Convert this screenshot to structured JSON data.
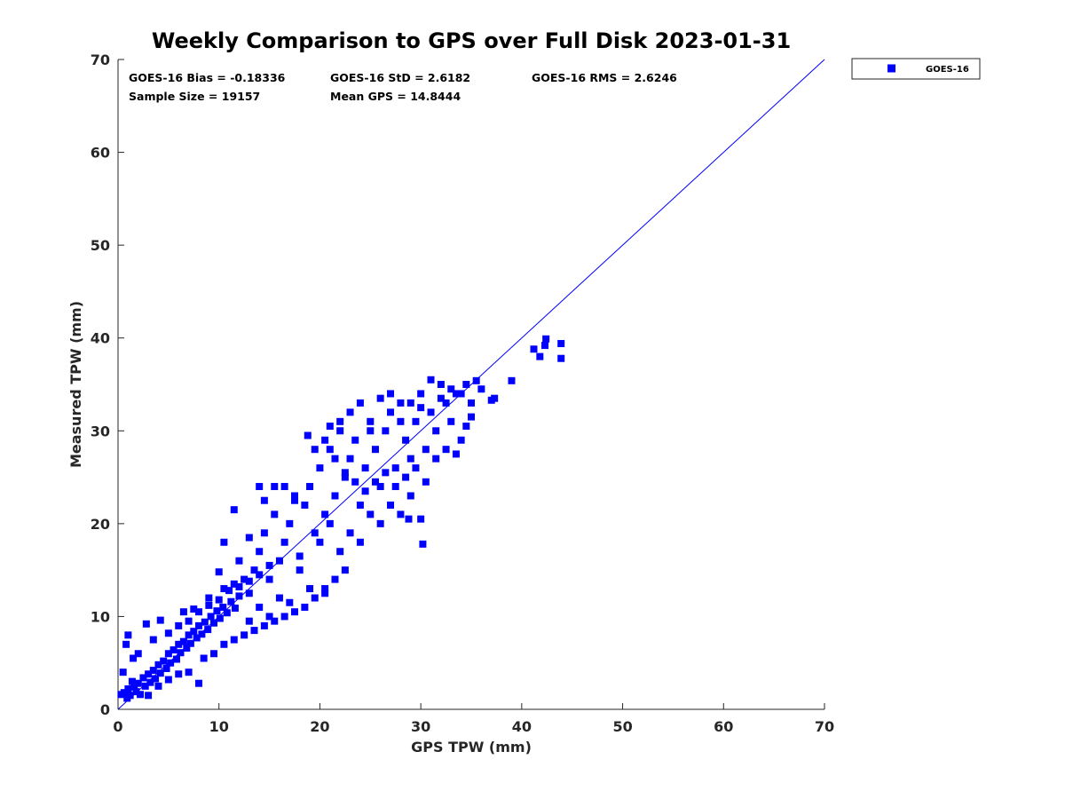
{
  "chart_data": {
    "type": "scatter",
    "title": "Weekly Comparison to GPS over Full Disk 2023-01-31",
    "xlabel": "GPS TPW (mm)",
    "ylabel": "Measured TPW (mm)",
    "xlim": [
      0,
      70
    ],
    "ylim": [
      0,
      70
    ],
    "x_ticks": [
      0,
      10,
      20,
      30,
      40,
      50,
      60,
      70
    ],
    "y_ticks": [
      0,
      10,
      20,
      30,
      40,
      50,
      60,
      70
    ],
    "grid": false,
    "legend_position": "outside-top-right",
    "colors": {
      "series": "#0000ff",
      "axes": "#262626"
    },
    "stats": [
      "GOES-16 Bias = -0.18336",
      "GOES-16 StD = 2.6182",
      "GOES-16 RMS = 2.6246",
      "Sample Size = 19157",
      "Mean GPS = 14.8444"
    ],
    "reference_line": {
      "x": [
        0,
        70
      ],
      "y": [
        0,
        70
      ]
    },
    "series": [
      {
        "name": "GOES-16",
        "marker": "square",
        "points": [
          [
            0.3,
            1.6
          ],
          [
            0.6,
            1.8
          ],
          [
            0.9,
            1.2
          ],
          [
            1.0,
            2.2
          ],
          [
            1.2,
            1.5
          ],
          [
            1.4,
            3.0
          ],
          [
            1.6,
            2.4
          ],
          [
            1.8,
            1.9
          ],
          [
            2.0,
            2.8
          ],
          [
            2.2,
            1.6
          ],
          [
            2.5,
            3.4
          ],
          [
            2.7,
            2.5
          ],
          [
            3.0,
            3.8
          ],
          [
            3.2,
            2.9
          ],
          [
            3.5,
            4.2
          ],
          [
            3.7,
            3.3
          ],
          [
            4.0,
            4.8
          ],
          [
            4.2,
            3.9
          ],
          [
            4.5,
            5.2
          ],
          [
            4.8,
            4.4
          ],
          [
            5.0,
            6.0
          ],
          [
            5.2,
            5.0
          ],
          [
            5.5,
            6.4
          ],
          [
            5.8,
            5.4
          ],
          [
            6.0,
            7.0
          ],
          [
            6.2,
            6.1
          ],
          [
            6.5,
            7.3
          ],
          [
            6.8,
            6.6
          ],
          [
            7.0,
            8.0
          ],
          [
            7.2,
            7.1
          ],
          [
            7.5,
            8.4
          ],
          [
            7.8,
            7.7
          ],
          [
            8.0,
            9.0
          ],
          [
            8.3,
            8.1
          ],
          [
            8.6,
            9.4
          ],
          [
            8.9,
            8.6
          ],
          [
            9.2,
            10.0
          ],
          [
            9.5,
            9.3
          ],
          [
            9.8,
            10.6
          ],
          [
            10.1,
            9.8
          ],
          [
            10.4,
            11.0
          ],
          [
            10.8,
            10.4
          ],
          [
            11.2,
            11.6
          ],
          [
            11.6,
            10.9
          ],
          [
            12.0,
            12.2
          ],
          [
            0.5,
            4.0
          ],
          [
            0.8,
            7.0
          ],
          [
            1.0,
            8.0
          ],
          [
            1.5,
            5.5
          ],
          [
            2.0,
            6.0
          ],
          [
            2.8,
            9.2
          ],
          [
            3.5,
            7.5
          ],
          [
            4.2,
            9.6
          ],
          [
            5.0,
            8.2
          ],
          [
            6.5,
            10.5
          ],
          [
            7.5,
            10.8
          ],
          [
            3.0,
            1.5
          ],
          [
            4.0,
            2.5
          ],
          [
            5.0,
            3.2
          ],
          [
            6.0,
            3.8
          ],
          [
            7.0,
            4.0
          ],
          [
            8.0,
            2.8
          ],
          [
            8.5,
            5.5
          ],
          [
            9.5,
            6.0
          ],
          [
            10.5,
            7.0
          ],
          [
            11.5,
            7.5
          ],
          [
            12.5,
            8.0
          ],
          [
            13.5,
            8.5
          ],
          [
            14.5,
            9.0
          ],
          [
            15.5,
            9.5
          ],
          [
            16.5,
            10.0
          ],
          [
            17.5,
            10.5
          ],
          [
            18.5,
            11.0
          ],
          [
            19.5,
            12.0
          ],
          [
            20.5,
            13.0
          ],
          [
            21.5,
            14.0
          ],
          [
            22.5,
            15.0
          ],
          [
            9.0,
            12.0
          ],
          [
            10.0,
            14.8
          ],
          [
            10.5,
            13.0
          ],
          [
            11.5,
            13.5
          ],
          [
            12.5,
            14.0
          ],
          [
            13.0,
            12.5
          ],
          [
            13.5,
            15.0
          ],
          [
            14.0,
            17.0
          ],
          [
            14.5,
            19.0
          ],
          [
            15.0,
            14.0
          ],
          [
            15.5,
            21.0
          ],
          [
            16.0,
            16.0
          ],
          [
            16.5,
            18.0
          ],
          [
            17.0,
            20.0
          ],
          [
            17.5,
            23.0
          ],
          [
            18.0,
            16.5
          ],
          [
            18.5,
            22.0
          ],
          [
            19.0,
            24.0
          ],
          [
            19.5,
            19.0
          ],
          [
            20.0,
            26.0
          ],
          [
            20.5,
            21.0
          ],
          [
            21.0,
            28.0
          ],
          [
            21.5,
            23.0
          ],
          [
            22.0,
            30.0
          ],
          [
            22.5,
            25.0
          ],
          [
            23.0,
            27.0
          ],
          [
            23.5,
            29.0
          ],
          [
            24.0,
            22.0
          ],
          [
            24.5,
            26.0
          ],
          [
            25.0,
            31.0
          ],
          [
            25.5,
            28.0
          ],
          [
            26.0,
            24.0
          ],
          [
            26.5,
            30.0
          ],
          [
            27.0,
            32.0
          ],
          [
            27.5,
            26.0
          ],
          [
            28.0,
            33.0
          ],
          [
            28.5,
            29.0
          ],
          [
            29.0,
            27.0
          ],
          [
            29.5,
            31.0
          ],
          [
            30.0,
            34.0
          ],
          [
            30.5,
            28.0
          ],
          [
            31.0,
            32.0
          ],
          [
            31.5,
            30.0
          ],
          [
            32.0,
            35.0
          ],
          [
            32.5,
            33.0
          ],
          [
            33.0,
            31.0
          ],
          [
            33.5,
            34.0
          ],
          [
            34.0,
            29.0
          ],
          [
            34.5,
            35.0
          ],
          [
            35.0,
            33.0
          ],
          [
            35.5,
            35.4
          ],
          [
            36.0,
            34.5
          ],
          [
            20.0,
            18.0
          ],
          [
            21.0,
            20.0
          ],
          [
            22.0,
            17.0
          ],
          [
            23.0,
            19.0
          ],
          [
            24.0,
            18.0
          ],
          [
            25.0,
            21.0
          ],
          [
            26.0,
            20.0
          ],
          [
            27.0,
            22.0
          ],
          [
            28.0,
            21.0
          ],
          [
            29.0,
            23.0
          ],
          [
            30.0,
            20.5
          ],
          [
            30.2,
            17.8
          ],
          [
            28.8,
            20.5
          ],
          [
            20.5,
            12.5
          ],
          [
            19.0,
            13.0
          ],
          [
            18.0,
            15.0
          ],
          [
            17.0,
            11.5
          ],
          [
            16.0,
            12.0
          ],
          [
            15.0,
            10.0
          ],
          [
            14.0,
            11.0
          ],
          [
            13.0,
            9.5
          ],
          [
            21.0,
            30.5
          ],
          [
            22.0,
            31.0
          ],
          [
            23.0,
            32.0
          ],
          [
            24.0,
            33.0
          ],
          [
            25.0,
            30.0
          ],
          [
            26.0,
            33.5
          ],
          [
            27.0,
            34.0
          ],
          [
            28.0,
            31.0
          ],
          [
            29.0,
            33.0
          ],
          [
            30.0,
            32.5
          ],
          [
            31.0,
            35.5
          ],
          [
            32.0,
            33.5
          ],
          [
            33.0,
            34.5
          ],
          [
            34.0,
            34.0
          ],
          [
            37.0,
            33.3
          ],
          [
            37.3,
            33.5
          ],
          [
            39.0,
            35.4
          ],
          [
            41.2,
            38.8
          ],
          [
            41.8,
            38.0
          ],
          [
            42.4,
            39.9
          ],
          [
            42.3,
            39.2
          ],
          [
            43.9,
            37.8
          ],
          [
            43.9,
            39.4
          ],
          [
            14.0,
            24.0
          ],
          [
            11.5,
            21.5
          ],
          [
            10.5,
            18.0
          ],
          [
            12.0,
            16.0
          ],
          [
            13.0,
            18.5
          ],
          [
            14.5,
            22.5
          ],
          [
            15.5,
            24.0
          ],
          [
            16.5,
            24.0
          ],
          [
            17.5,
            22.5
          ],
          [
            18.8,
            29.5
          ],
          [
            19.5,
            28.0
          ],
          [
            20.5,
            29.0
          ],
          [
            21.5,
            27.0
          ],
          [
            22.5,
            25.5
          ],
          [
            23.5,
            24.5
          ],
          [
            24.5,
            23.5
          ],
          [
            25.5,
            24.5
          ],
          [
            26.5,
            25.5
          ],
          [
            27.5,
            24.0
          ],
          [
            28.5,
            25.0
          ],
          [
            29.5,
            26.0
          ],
          [
            30.5,
            24.5
          ],
          [
            31.5,
            27.0
          ],
          [
            32.5,
            28.0
          ],
          [
            33.5,
            27.5
          ],
          [
            34.5,
            30.5
          ],
          [
            35.0,
            31.5
          ],
          [
            6.0,
            9.0
          ],
          [
            7.0,
            9.5
          ],
          [
            8.0,
            10.5
          ],
          [
            9.0,
            11.2
          ],
          [
            10.0,
            11.8
          ],
          [
            11.0,
            12.8
          ],
          [
            12.0,
            13.2
          ],
          [
            13.0,
            13.8
          ],
          [
            14.0,
            14.5
          ],
          [
            15.0,
            15.5
          ]
        ]
      }
    ]
  }
}
